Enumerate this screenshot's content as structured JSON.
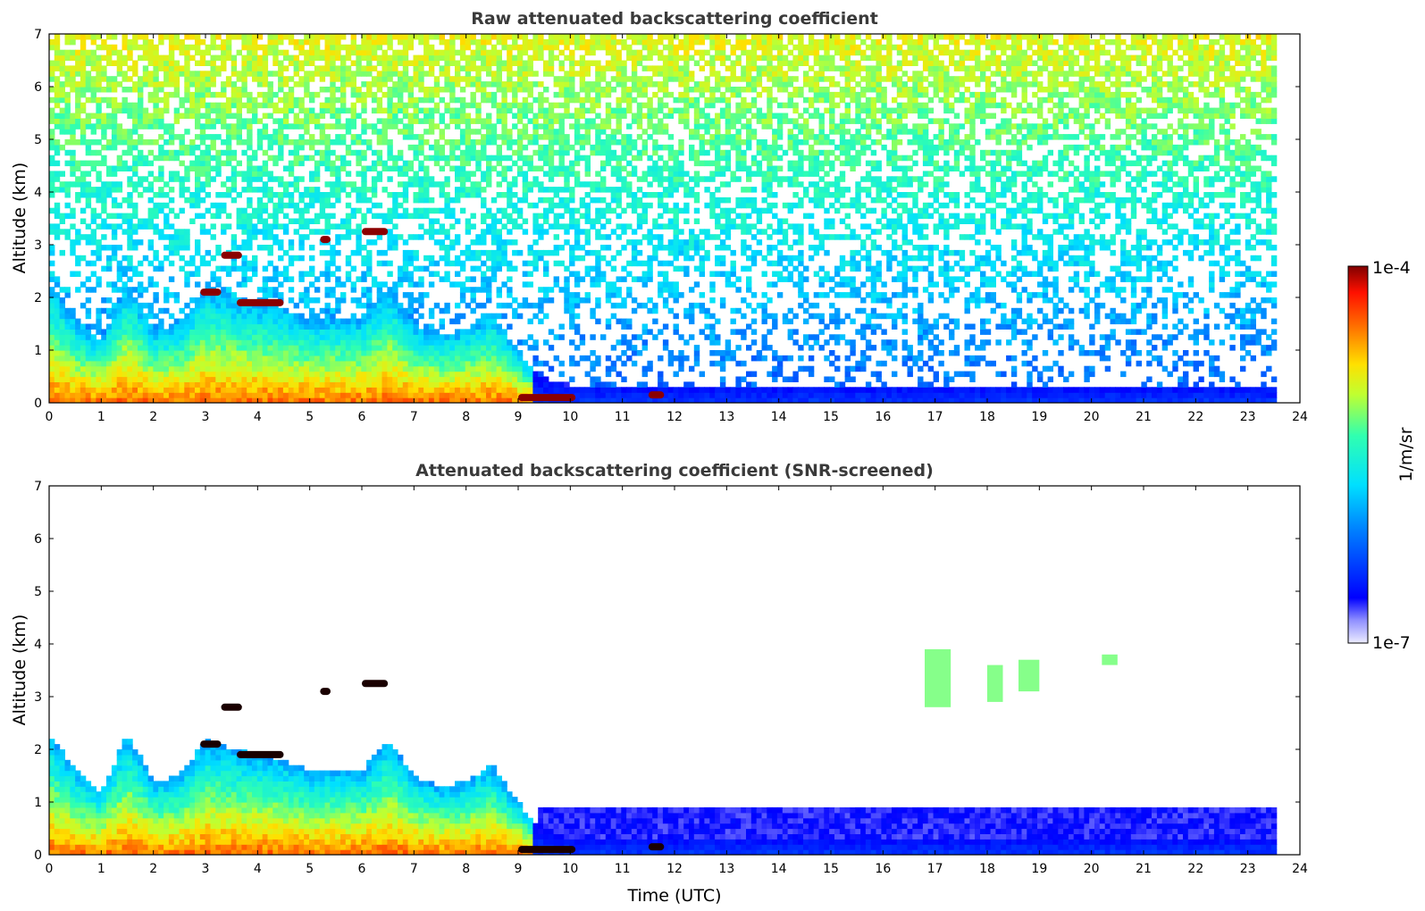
{
  "chart_data": [
    {
      "type": "heatmap",
      "title": "Raw attenuated backscattering coefficient",
      "xlabel": "",
      "ylabel": "Altitude (km)",
      "xlim": [
        0,
        24
      ],
      "ylim": [
        0,
        7
      ],
      "xticks": [
        "0",
        "1",
        "2",
        "3",
        "4",
        "5",
        "6",
        "7",
        "8",
        "9",
        "10",
        "11",
        "12",
        "13",
        "14",
        "15",
        "16",
        "17",
        "18",
        "19",
        "20",
        "21",
        "22",
        "23",
        "24"
      ],
      "yticks": [
        "0",
        "1",
        "2",
        "3",
        "4",
        "5",
        "6",
        "7"
      ],
      "data_end_time": 23.55,
      "screened": false,
      "boundary_layer_top_km": [
        [
          0,
          2.3
        ],
        [
          0.5,
          1.6
        ],
        [
          1,
          1.2
        ],
        [
          1.5,
          2.3
        ],
        [
          2,
          1.4
        ],
        [
          2.5,
          1.5
        ],
        [
          3,
          2.2
        ],
        [
          3.5,
          2.0
        ],
        [
          4,
          1.9
        ],
        [
          4.5,
          1.8
        ],
        [
          5,
          1.6
        ],
        [
          5.5,
          1.6
        ],
        [
          6,
          1.6
        ],
        [
          6.5,
          2.2
        ],
        [
          7,
          1.5
        ],
        [
          7.5,
          1.3
        ],
        [
          8,
          1.4
        ],
        [
          8.5,
          1.7
        ],
        [
          9,
          1.0
        ],
        [
          9.4,
          0.5
        ],
        [
          10,
          0.35
        ],
        [
          12,
          0.35
        ],
        [
          16,
          0.35
        ],
        [
          23.5,
          0.35
        ]
      ],
      "cloud_features": [
        {
          "time_start": 2.9,
          "time_end": 3.3,
          "altitude_km": 2.1
        },
        {
          "time_start": 3.3,
          "time_end": 3.7,
          "altitude_km": 2.8
        },
        {
          "time_start": 3.6,
          "time_end": 4.5,
          "altitude_km": 1.9
        },
        {
          "time_start": 5.2,
          "time_end": 5.4,
          "altitude_km": 3.1
        },
        {
          "time_start": 6.0,
          "time_end": 6.5,
          "altitude_km": 3.25
        },
        {
          "time_start": 9.0,
          "time_end": 10.1,
          "altitude_km": 0.1
        },
        {
          "time_start": 11.5,
          "time_end": 11.8,
          "altitude_km": 0.15
        }
      ]
    },
    {
      "type": "heatmap",
      "title": "Attenuated backscattering coefficient (SNR-screened)",
      "xlabel": "Time (UTC)",
      "ylabel": "Altitude (km)",
      "xlim": [
        0,
        24
      ],
      "ylim": [
        0,
        7
      ],
      "xticks": [
        "0",
        "1",
        "2",
        "3",
        "4",
        "5",
        "6",
        "7",
        "8",
        "9",
        "10",
        "11",
        "12",
        "13",
        "14",
        "15",
        "16",
        "17",
        "18",
        "19",
        "20",
        "21",
        "22",
        "23",
        "24"
      ],
      "yticks": [
        "0",
        "1",
        "2",
        "3",
        "4",
        "5",
        "6",
        "7"
      ],
      "data_end_time": 23.55,
      "screened": true,
      "aerosol_layers_km": [
        {
          "time_start": 16.8,
          "time_end": 17.3,
          "bottom": 2.8,
          "top": 3.9
        },
        {
          "time_start": 18.0,
          "time_end": 18.3,
          "bottom": 2.9,
          "top": 3.6
        },
        {
          "time_start": 18.6,
          "time_end": 19.0,
          "bottom": 3.1,
          "top": 3.7
        },
        {
          "time_start": 20.2,
          "time_end": 20.5,
          "bottom": 3.6,
          "top": 3.8
        }
      ]
    }
  ],
  "colorbar": {
    "label": "1/m/sr",
    "max_label": "1e-4",
    "min_label": "1e-7",
    "scale": "log",
    "range": [
      1e-07,
      0.0001
    ],
    "colormap": "jet"
  }
}
